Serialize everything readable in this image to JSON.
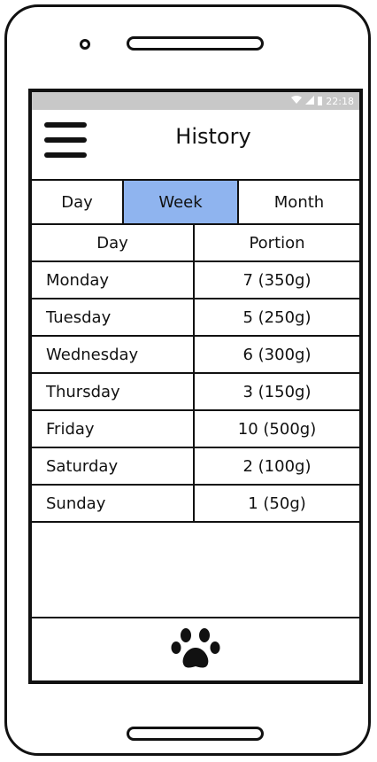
{
  "statusbar": {
    "time": "22:18",
    "wifi_icon": "wifi-icon",
    "signal_icon": "signal-icon",
    "battery_icon": "battery-icon"
  },
  "header": {
    "title": "History",
    "menu_icon": "hamburger-menu-icon"
  },
  "tabs": [
    {
      "label": "Day",
      "selected": false
    },
    {
      "label": "Week",
      "selected": true
    },
    {
      "label": "Month",
      "selected": false
    }
  ],
  "table": {
    "columns": [
      "Day",
      "Portion"
    ],
    "rows": [
      [
        "Monday",
        "7 (350g)"
      ],
      [
        "Tuesday",
        "5 (250g)"
      ],
      [
        "Wednesday",
        "6 (300g)"
      ],
      [
        "Thursday",
        "3 (150g)"
      ],
      [
        "Friday",
        "10 (500g)"
      ],
      [
        "Saturday",
        "2 (100g)"
      ],
      [
        "Sunday",
        "1 (50g)"
      ]
    ]
  },
  "bottom": {
    "icon": "paw-icon"
  },
  "colors": {
    "selected_tab": "#8fb4ef",
    "statusbar": "#c8c8c8"
  }
}
